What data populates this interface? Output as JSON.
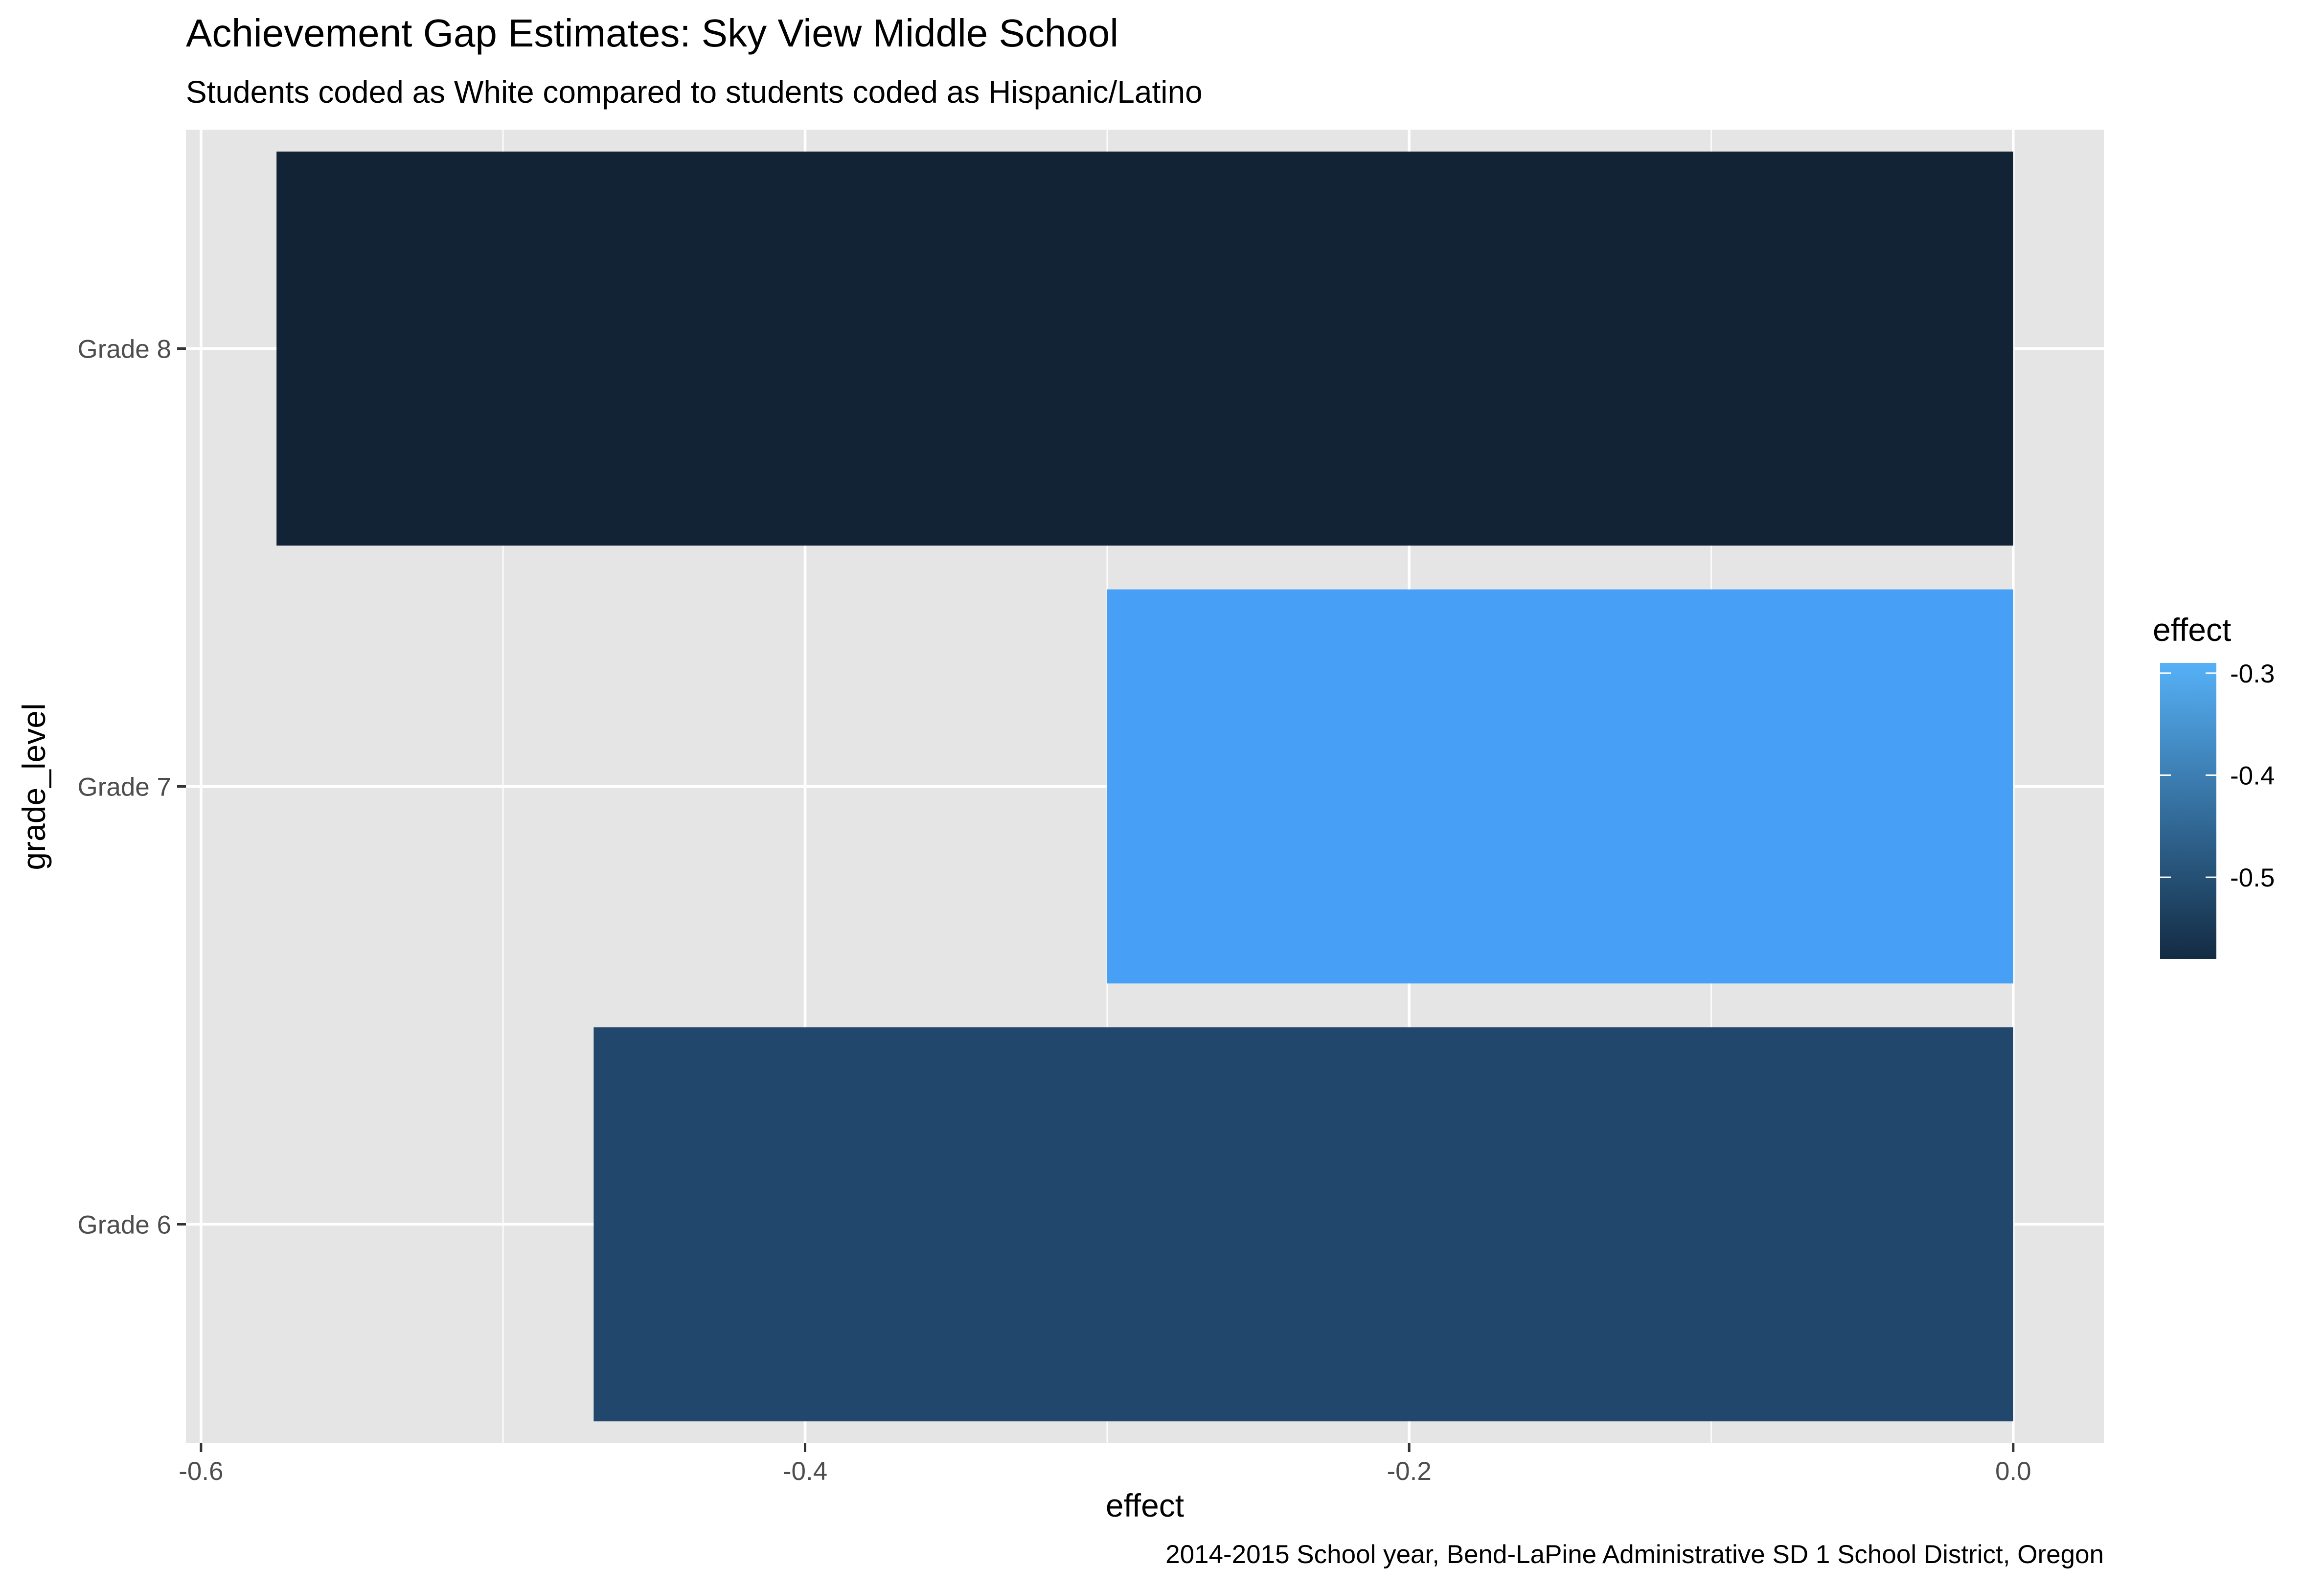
{
  "chart_data": {
    "type": "bar",
    "orientation": "horizontal",
    "title": "Achievement Gap Estimates: Sky View Middle School",
    "subtitle": "Students coded as White compared to students coded as Hispanic/Latino",
    "caption": "2014-2015 School year, Bend-LaPine Administrative SD 1 School District, Oregon",
    "xlabel": "effect",
    "ylabel": "grade_level",
    "categories": [
      "Grade 6",
      "Grade 7",
      "Grade 8"
    ],
    "values": [
      -0.47,
      -0.3,
      -0.575
    ],
    "bar_colors": [
      "#22476c",
      "#47a0f5",
      "#122336"
    ],
    "xlim": [
      -0.605,
      0.03
    ],
    "x_ticks": [
      -0.6,
      -0.4,
      -0.2,
      0.0
    ],
    "x_tick_labels": [
      "-0.6",
      "-0.4",
      "-0.2",
      "0.0"
    ],
    "grid": true,
    "panel_background": "#e5e5e5",
    "grid_color": "#ffffff",
    "legend": {
      "title": "effect",
      "type": "colorbar",
      "placement": "right",
      "range": [
        -0.58,
        -0.29
      ],
      "low_color": "#132b43",
      "high_color": "#56b1f7",
      "ticks": [
        -0.5,
        -0.4,
        -0.3
      ],
      "tick_labels": [
        "-0.5",
        "-0.4",
        "-0.3"
      ]
    }
  }
}
